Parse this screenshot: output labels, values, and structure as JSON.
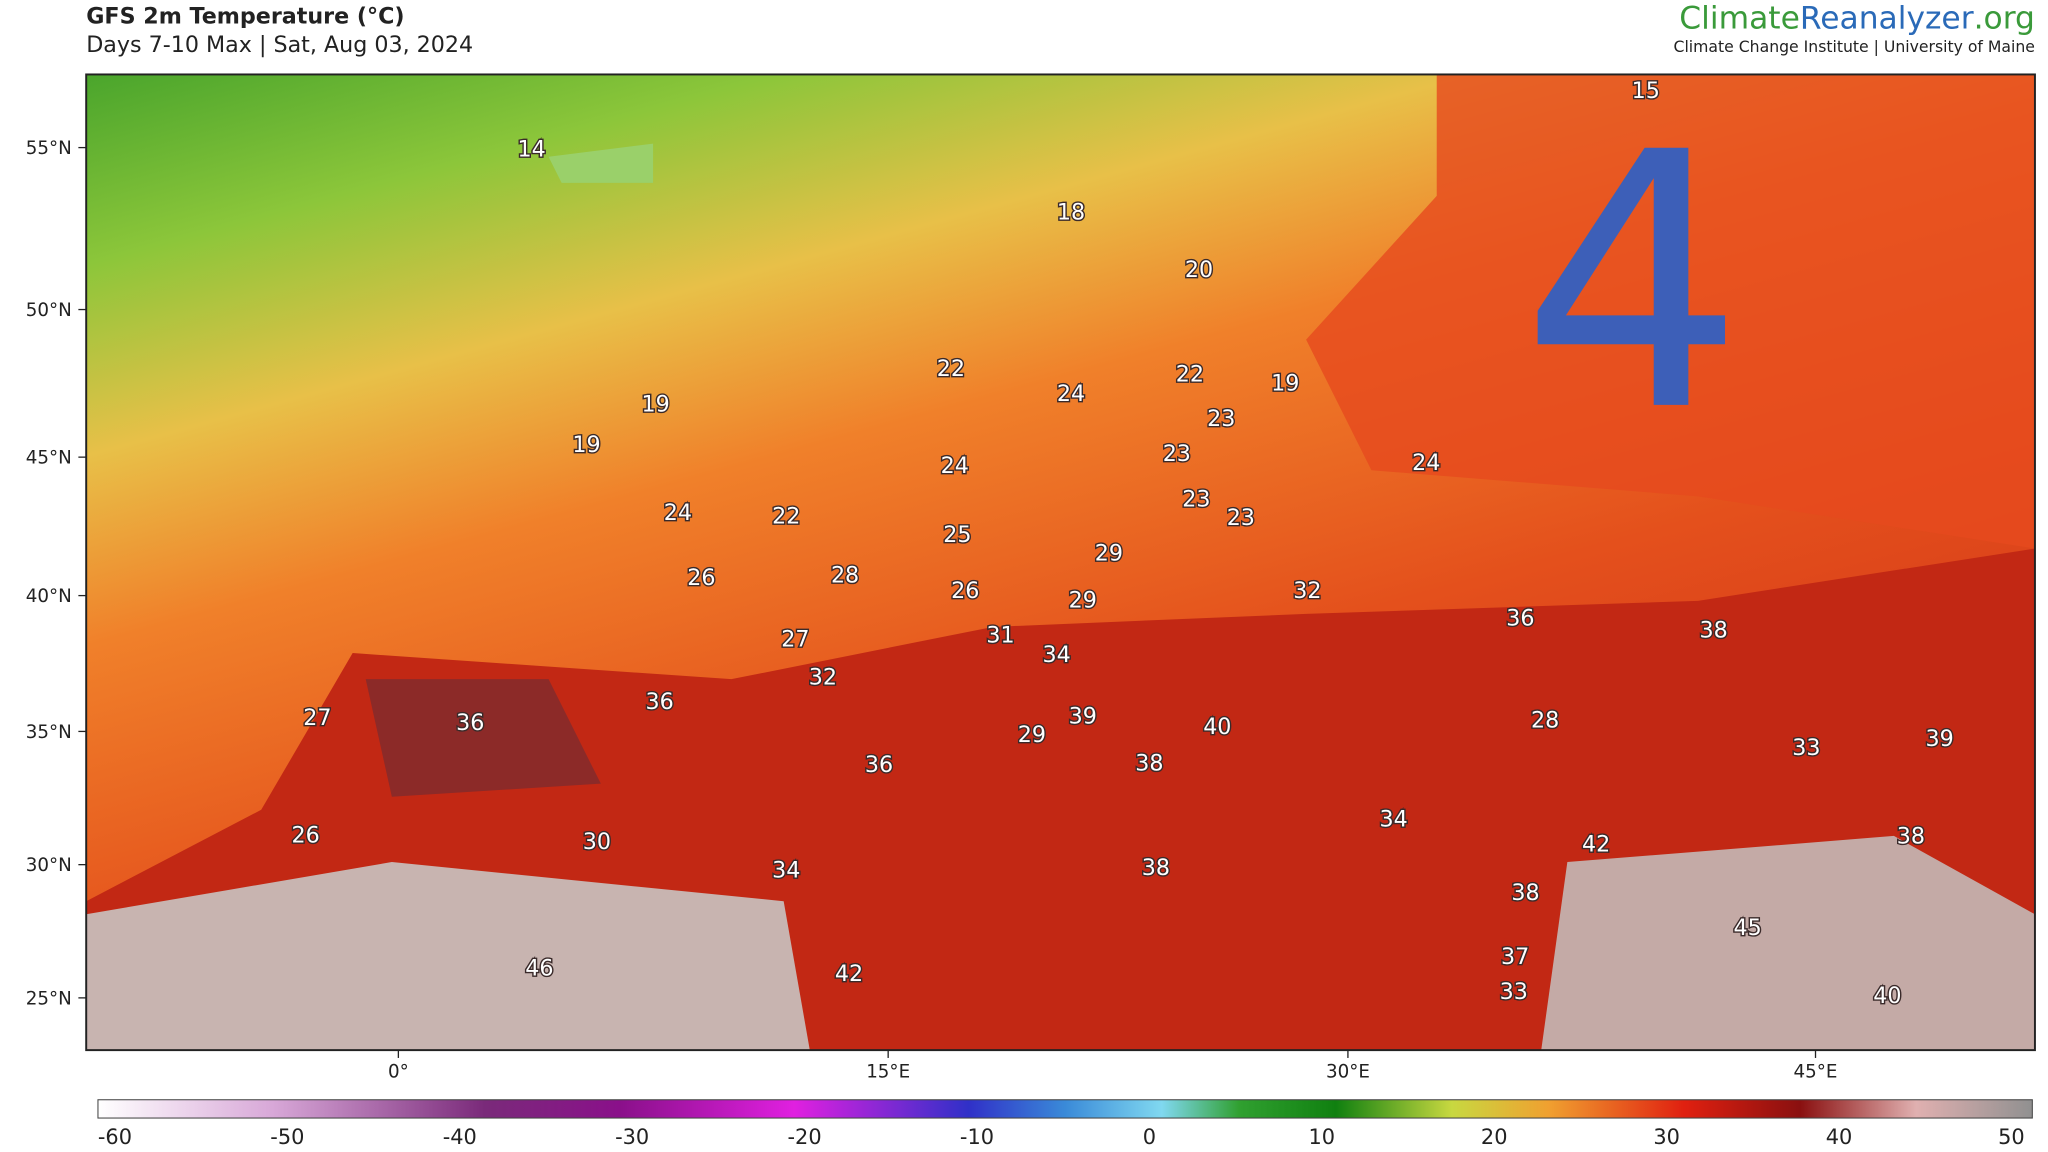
{
  "header": {
    "title": "GFS 2m Temperature (°C)",
    "subtitle": "Days 7-10 Max | Sat, Aug 03, 2024"
  },
  "brand": {
    "part1": "Climate",
    "part2": "Reanalyzer",
    "part3": ".org",
    "tagline": "Climate Change Institute | University of Maine"
  },
  "overlay": "4",
  "lat_labels": [
    "55°N",
    "50°N",
    "45°N",
    "40°N",
    "35°N",
    "30°N",
    "25°N"
  ],
  "lon_labels": [
    "0°",
    "15°E",
    "30°E",
    "45°E"
  ],
  "temp_labels": [
    14,
    15,
    18,
    20,
    22,
    24,
    22,
    19,
    19,
    19,
    23,
    23,
    24,
    24,
    24,
    22,
    23,
    23,
    25,
    29,
    26,
    28,
    26,
    29,
    32,
    36,
    38,
    27,
    31,
    34,
    32,
    36,
    27,
    36,
    39,
    40,
    28,
    29,
    33,
    39,
    36,
    38,
    26,
    30,
    34,
    42,
    38,
    34,
    38,
    38,
    45,
    46,
    42,
    37,
    33,
    40
  ],
  "colorbar_ticks": [
    -60,
    -50,
    -40,
    -30,
    -20,
    -10,
    0,
    10,
    20,
    30,
    40,
    50
  ]
}
